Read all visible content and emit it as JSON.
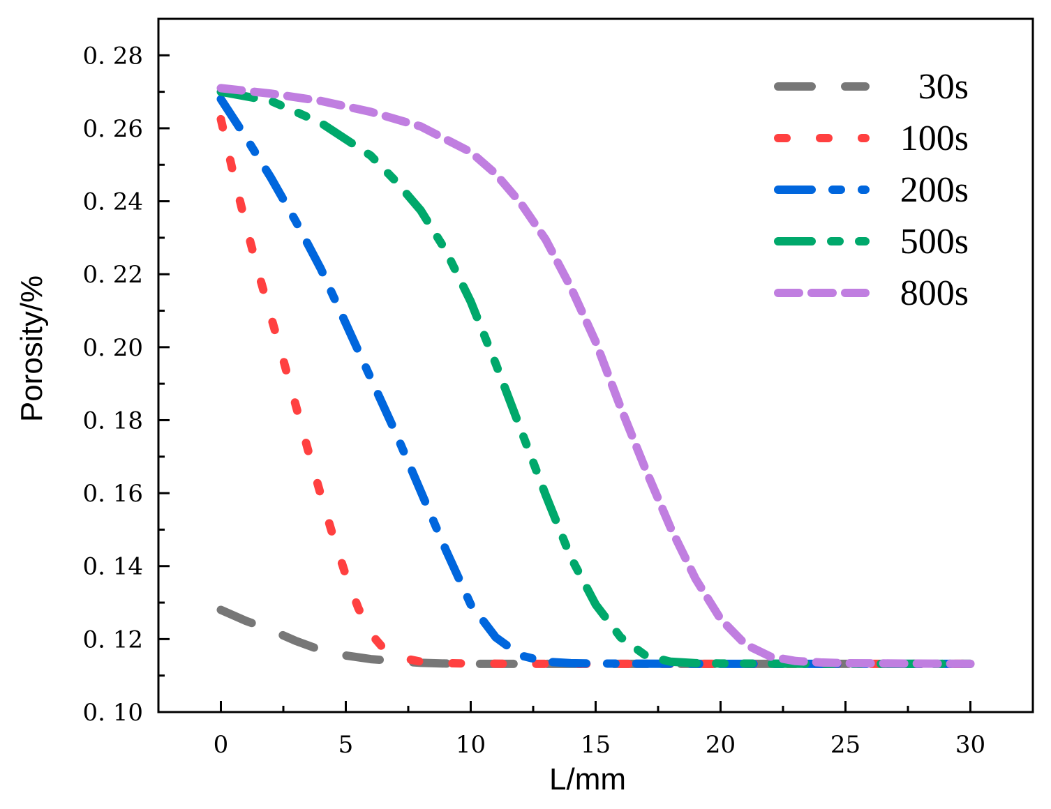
{
  "chart_data": {
    "type": "line",
    "title": "",
    "xlabel": "L/mm",
    "ylabel": "Porosity/%",
    "xlim": [
      -2.5,
      32.5
    ],
    "ylim": [
      0.1,
      0.29
    ],
    "xticks": [
      0,
      5,
      10,
      15,
      20,
      25,
      30
    ],
    "xtick_labels": [
      "0",
      "5",
      "10",
      "15",
      "20",
      "25",
      "30"
    ],
    "yticks": [
      0.1,
      0.12,
      0.14,
      0.16,
      0.18,
      0.2,
      0.22,
      0.24,
      0.26,
      0.28
    ],
    "ytick_labels": [
      "0. 10",
      "0. 12",
      "0. 14",
      "0. 16",
      "0. 18",
      "0. 20",
      "0. 22",
      "0. 24",
      "0. 26",
      "0. 28"
    ],
    "grid": false,
    "legend_position": "top-right",
    "series": [
      {
        "name": "30s",
        "color": "#777777",
        "dash": "dash",
        "x": [
          0,
          1,
          2,
          3,
          4,
          5,
          6,
          7,
          8,
          9,
          10,
          12,
          15,
          20,
          25,
          30
        ],
        "y": [
          0.128,
          0.125,
          0.1225,
          0.1195,
          0.117,
          0.1155,
          0.1145,
          0.114,
          0.1135,
          0.1133,
          0.1132,
          0.1132,
          0.1132,
          0.1132,
          0.1132,
          0.1132
        ]
      },
      {
        "name": "100s",
        "color": "#ff4040",
        "dash": "dot",
        "x": [
          0,
          0.5,
          1,
          1.5,
          2,
          2.5,
          3,
          3.5,
          4,
          4.5,
          5,
          5.5,
          6,
          6.5,
          7,
          7.5,
          8,
          9,
          10,
          12,
          15,
          20,
          25,
          30
        ],
        "y": [
          0.2625,
          0.2475,
          0.2335,
          0.2205,
          0.2085,
          0.1965,
          0.184,
          0.1715,
          0.1595,
          0.148,
          0.1375,
          0.1285,
          0.1215,
          0.1175,
          0.1155,
          0.1145,
          0.1138,
          0.1134,
          0.1133,
          0.1132,
          0.1132,
          0.1132,
          0.1132,
          0.1132
        ]
      },
      {
        "name": "200s",
        "color": "#0066dd",
        "dash": "dashdot",
        "x": [
          0,
          1,
          2,
          3,
          4,
          5,
          6,
          7,
          8,
          9,
          10,
          11,
          12,
          13,
          14,
          15,
          20,
          25,
          30
        ],
        "y": [
          0.268,
          0.2575,
          0.2465,
          0.2345,
          0.2215,
          0.2065,
          0.1915,
          0.1765,
          0.1605,
          0.1445,
          0.1295,
          0.1205,
          0.1155,
          0.1138,
          0.1134,
          0.1133,
          0.1132,
          0.1132,
          0.1132
        ]
      },
      {
        "name": "500s",
        "color": "#00a86b",
        "dash": "dashdotdot",
        "x": [
          0,
          2,
          4,
          6,
          7,
          8,
          9,
          10,
          11,
          12,
          13,
          14,
          15,
          16,
          17,
          18,
          19,
          20,
          25,
          30
        ],
        "y": [
          0.27,
          0.2675,
          0.2615,
          0.2525,
          0.2455,
          0.2375,
          0.2265,
          0.2125,
          0.1955,
          0.1775,
          0.1595,
          0.1425,
          0.1295,
          0.1205,
          0.1155,
          0.1138,
          0.1134,
          0.1133,
          0.1132,
          0.1132
        ]
      },
      {
        "name": "800s",
        "color": "#c07ee0",
        "dash": "shortdash",
        "x": [
          0,
          2,
          4,
          6,
          8,
          10,
          11,
          12,
          13,
          14,
          15,
          16,
          17,
          18,
          19,
          20,
          21,
          22,
          23,
          24,
          25,
          27,
          30
        ],
        "y": [
          0.271,
          0.2695,
          0.2675,
          0.2645,
          0.2605,
          0.2535,
          0.2475,
          0.2395,
          0.2295,
          0.2165,
          0.2015,
          0.1835,
          0.1665,
          0.1505,
          0.1365,
          0.1255,
          0.1185,
          0.1152,
          0.114,
          0.1136,
          0.1134,
          0.1133,
          0.1132
        ]
      }
    ]
  }
}
